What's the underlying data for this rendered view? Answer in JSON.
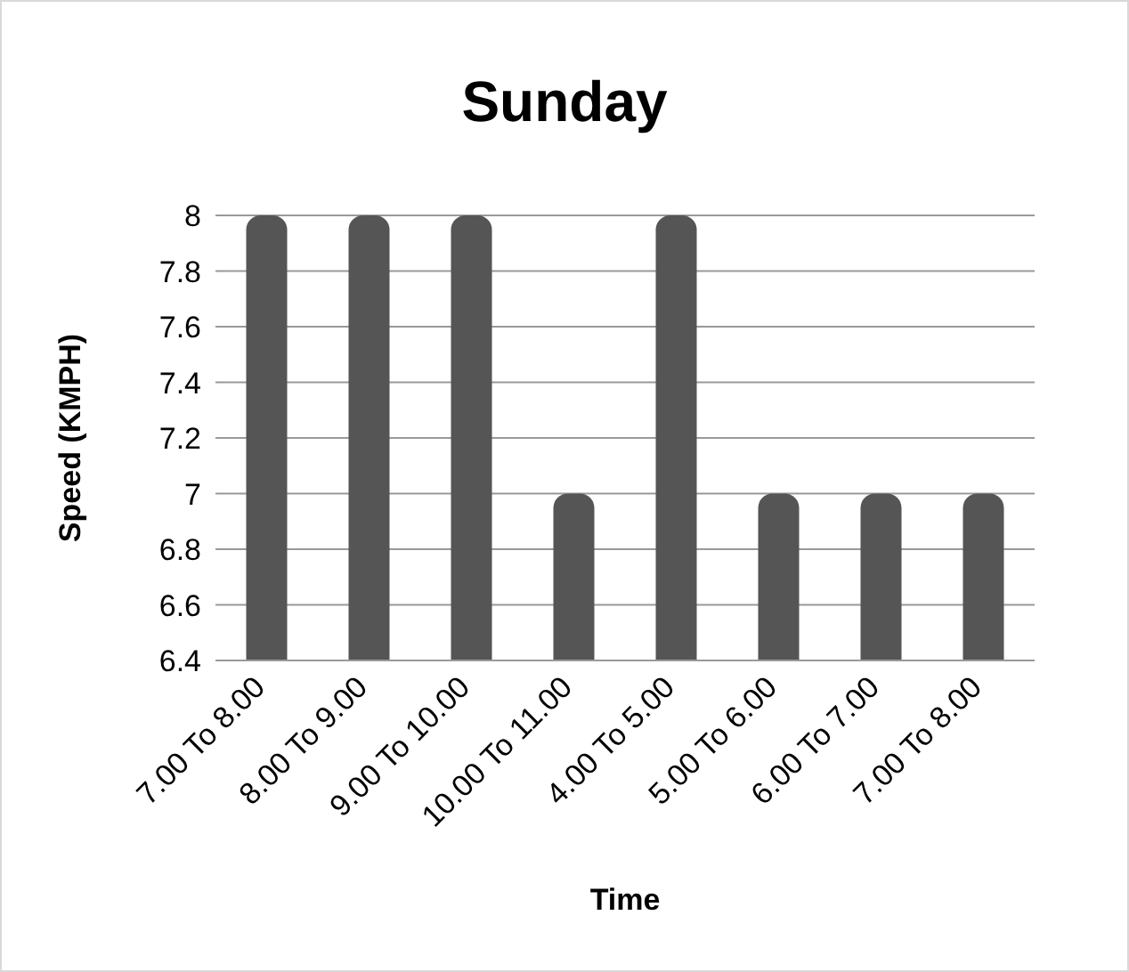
{
  "chart_data": {
    "type": "bar",
    "title": "Sunday",
    "xlabel": "Time",
    "ylabel": "Speed (KMPH)",
    "categories": [
      "7.00 To 8.00",
      "8.00 To 9.00",
      "9.00 To 10.00",
      "10.00 To 11.00",
      "4.00 To 5.00",
      "5.00 To 6.00",
      "6.00 To 7.00",
      "7.00 To 8.00"
    ],
    "values": [
      8,
      8,
      8,
      7,
      8,
      7,
      7,
      7
    ],
    "color": "#555555",
    "ylim": [
      6.4,
      8
    ],
    "yticks": [
      6.4,
      6.6,
      6.8,
      7,
      7.2,
      7.4,
      7.6,
      7.8,
      8
    ],
    "grid": "y"
  }
}
